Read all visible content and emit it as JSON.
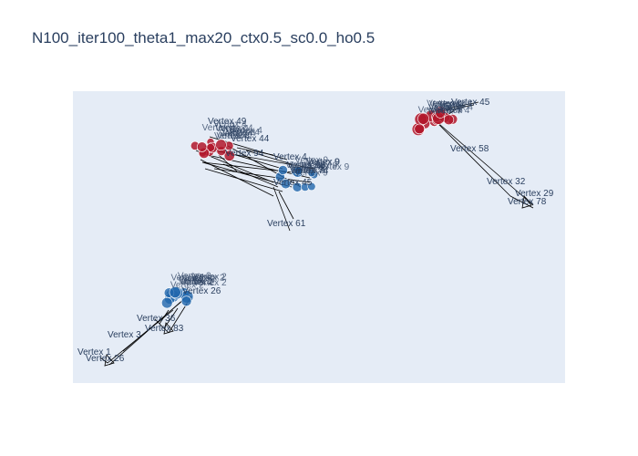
{
  "title": "N100_iter100_theta1_max20_ctx0.5_sc0.0_ho0.5",
  "colors": {
    "plot_bg": "#e5ecf6",
    "text": "#2a3f5f",
    "node_red": "#b2182b",
    "node_blue": "#2166ac",
    "edge": "#000000"
  },
  "vertex_labels": [
    "Vertex 49",
    "Vertex 44",
    "Vertex 94",
    "Vertex 4",
    "Vertex 74",
    "Vertex 98",
    "Vertex 45",
    "Vertex 61",
    "Vertex 45",
    "Vertex 58",
    "Vertex 32",
    "Vertex 29",
    "Vertex 78",
    "Vertex 26",
    "Vertex 36",
    "Vertex 83",
    "Vertex 3",
    "Vertex 1",
    "Vertex 26"
  ]
}
